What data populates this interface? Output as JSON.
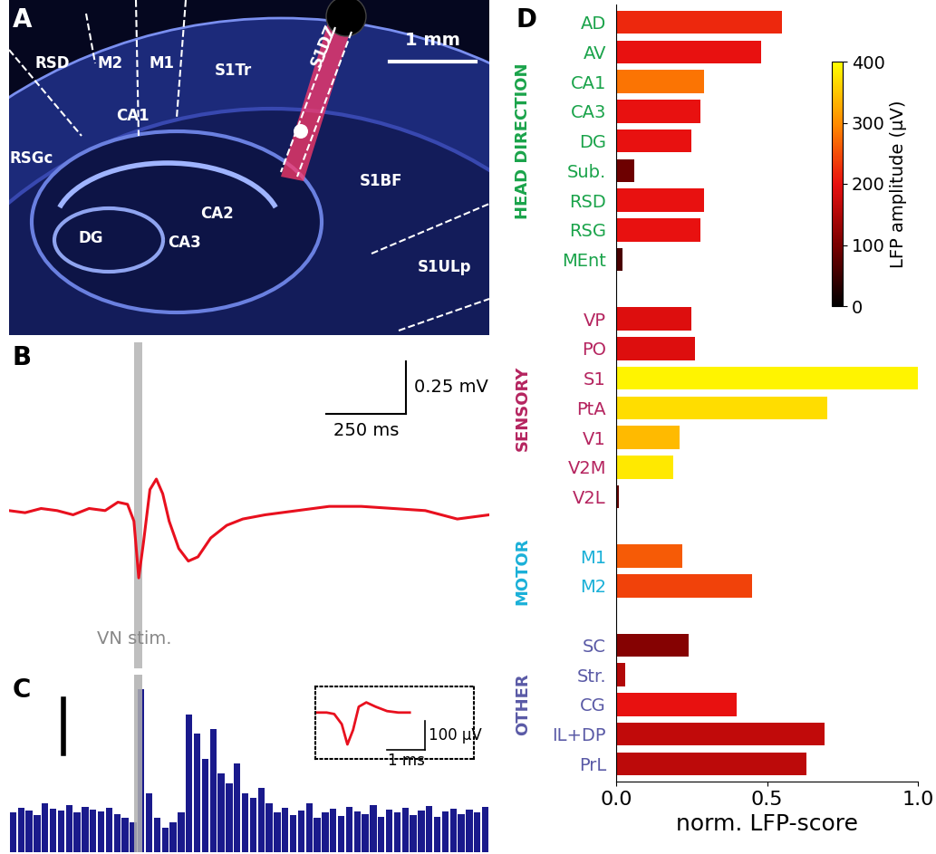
{
  "panel_labels": [
    "A",
    "B",
    "C",
    "D"
  ],
  "brain_section": {
    "labels": [
      "RSD",
      "M2",
      "M1",
      "S1Tr",
      "S1DZ",
      "RSGc",
      "CA1",
      "CA2",
      "CA3",
      "DG",
      "S1BF",
      "S1ULp"
    ],
    "scalebar": {
      "value": 1,
      "label": "1 mm"
    }
  },
  "chart_data": [
    {
      "type": "line",
      "tick_labels": false,
      "color": "#e8101e",
      "x": [
        -400,
        -350,
        -300,
        -250,
        -200,
        -150,
        -100,
        -60,
        -30,
        -10,
        5,
        20,
        40,
        60,
        80,
        100,
        130,
        160,
        190,
        230,
        280,
        330,
        400,
        500,
        600,
        700,
        800,
        900,
        1000,
        1050,
        1100
      ],
      "values": [
        0.0,
        -0.01,
        0.01,
        0.0,
        -0.02,
        0.01,
        0.0,
        0.04,
        0.03,
        -0.05,
        -0.32,
        -0.15,
        0.1,
        0.15,
        0.08,
        -0.05,
        -0.18,
        -0.24,
        -0.22,
        -0.13,
        -0.07,
        -0.04,
        -0.02,
        0.0,
        0.02,
        0.02,
        0.01,
        0.0,
        -0.04,
        -0.03,
        -0.02
      ],
      "xlim": [
        -400,
        1100
      ],
      "ylim": [
        -0.75,
        0.8
      ],
      "stim": {
        "start": -10,
        "end": 15,
        "label": "VN stim."
      },
      "scalebar": {
        "x": 250,
        "x_label": "250 ms",
        "y": 0.25,
        "y_label": "0.25 mV"
      }
    },
    {
      "type": "histogram",
      "tick_labels": false,
      "color": "#1a1a8c",
      "bins": [
        -400,
        -375,
        -350,
        -325,
        -300,
        -275,
        -250,
        -225,
        -200,
        -175,
        -150,
        -125,
        -100,
        -75,
        -50,
        -25,
        0,
        25,
        50,
        75,
        100,
        125,
        150,
        175,
        200,
        225,
        250,
        275,
        300,
        325,
        350,
        375,
        400,
        425,
        450,
        475,
        500,
        525,
        550,
        575,
        600,
        625,
        650,
        675,
        700,
        725,
        750,
        775,
        800,
        825,
        850,
        875,
        900,
        925,
        950,
        975,
        1000,
        1025,
        1050,
        1075,
        1100
      ],
      "counts": [
        40,
        45,
        42,
        38,
        50,
        44,
        42,
        48,
        40,
        46,
        43,
        41,
        45,
        39,
        35,
        30,
        165,
        60,
        35,
        25,
        30,
        40,
        140,
        120,
        95,
        125,
        80,
        70,
        90,
        60,
        55,
        65,
        50,
        40,
        45,
        38,
        42,
        50,
        35,
        40,
        44,
        37,
        46,
        41,
        39,
        48,
        36,
        43,
        40,
        45,
        38,
        42,
        47,
        36,
        41,
        44,
        39,
        43,
        40,
        46
      ],
      "xlim": [
        -400,
        1100
      ],
      "ylim": [
        0,
        180
      ],
      "scalebar": {
        "y": 55
      },
      "inset": {
        "type": "line",
        "color": "#e8101e",
        "x": [
          0,
          0.3,
          0.5,
          0.7,
          0.85,
          1.0,
          1.15,
          1.35,
          1.6,
          1.9,
          2.2,
          2.5
        ],
        "values": [
          0,
          0,
          -5,
          -40,
          -110,
          -60,
          20,
          35,
          20,
          5,
          0,
          0
        ],
        "xlim": [
          0,
          4.2
        ],
        "ylim": [
          -160,
          90
        ],
        "scalebar": {
          "x": 1,
          "x_label": "1 ms",
          "y": 100,
          "y_label": "100 µV"
        }
      }
    },
    {
      "type": "bar",
      "orientation": "horizontal",
      "xlabel": "norm. LFP-score",
      "xlim": [
        0,
        1
      ],
      "xticks": [
        {
          "value": 0,
          "label": "0.0"
        },
        {
          "value": 0.5,
          "label": "0.5"
        },
        {
          "value": 1,
          "label": "1.0"
        }
      ],
      "groups": [
        {
          "name": "HEAD DIRECTION",
          "color": "#1aa34a",
          "categories": [
            "AD",
            "AV",
            "CA1",
            "CA3",
            "DG",
            "Sub.",
            "RSD",
            "RSG",
            "MEnt"
          ],
          "values": [
            0.55,
            0.48,
            0.29,
            0.28,
            0.25,
            0.06,
            0.29,
            0.28,
            0.02
          ],
          "amplitude": [
            220,
            200,
            280,
            200,
            200,
            90,
            200,
            200,
            60
          ]
        },
        {
          "name": "SENSORY",
          "color": "#b5245f",
          "categories": [
            "VP",
            "PO",
            "S1",
            "PtA",
            "V1",
            "V2M",
            "V2L"
          ],
          "values": [
            0.25,
            0.26,
            1.0,
            0.7,
            0.21,
            0.19,
            0.01
          ],
          "amplitude": [
            190,
            190,
            390,
            370,
            340,
            380,
            80
          ]
        },
        {
          "name": "MOTOR",
          "color": "#1ab0d8",
          "categories": [
            "M1",
            "M2"
          ],
          "values": [
            0.22,
            0.45
          ],
          "amplitude": [
            260,
            240
          ]
        },
        {
          "name": "OTHER",
          "color": "#5a5aa6",
          "categories": [
            "SC",
            "Str.",
            "CG",
            "IL+DP",
            "PrL"
          ],
          "values": [
            0.24,
            0.03,
            0.4,
            0.69,
            0.63
          ],
          "amplitude": [
            110,
            150,
            200,
            165,
            160
          ]
        }
      ],
      "colorbar": {
        "label": "LFP amplitude (µV)",
        "lim": [
          0,
          400
        ],
        "ticks": [
          0,
          100,
          200,
          300,
          400
        ]
      }
    }
  ]
}
